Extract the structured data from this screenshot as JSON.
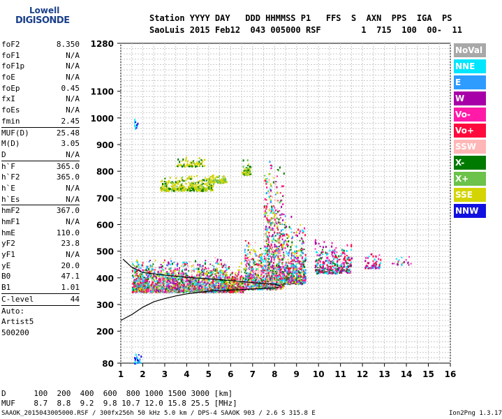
{
  "logo": {
    "line1": "Lowell",
    "line2": "DIGISONDE"
  },
  "header": {
    "line1": "Station YYYY DAY   DDD HHMMSS P1   FFS  S  AXN  PPS  IGA  PS",
    "line2": "SaoLuis 2015 Feb12  043 005000 RSF        1  715  100  00-  11"
  },
  "params": [
    [
      {
        "k": "foF2",
        "v": "8.350"
      },
      {
        "k": "foF1",
        "v": "N/A"
      },
      {
        "k": "foF1p",
        "v": "N/A"
      },
      {
        "k": "foE",
        "v": "N/A"
      },
      {
        "k": "foEp",
        "v": "0.45"
      },
      {
        "k": "fxI",
        "v": "N/A"
      },
      {
        "k": "foEs",
        "v": "N/A"
      },
      {
        "k": "fmin",
        "v": "2.45"
      }
    ],
    [
      {
        "k": "MUF(D)",
        "v": "25.48"
      },
      {
        "k": "M(D)",
        "v": "3.05"
      },
      {
        "k": "D",
        "v": "N/A"
      }
    ],
    [
      {
        "k": "h`F",
        "v": "365.0"
      },
      {
        "k": "h`F2",
        "v": "365.0"
      },
      {
        "k": "h`E",
        "v": "N/A"
      },
      {
        "k": "h`Es",
        "v": "N/A"
      }
    ],
    [
      {
        "k": "hmF2",
        "v": "367.0"
      },
      {
        "k": "hmF1",
        "v": "N/A"
      },
      {
        "k": "hmE",
        "v": "110.0"
      },
      {
        "k": "yF2",
        "v": "23.8"
      },
      {
        "k": "yF1",
        "v": "N/A"
      },
      {
        "k": "yE",
        "v": "20.0"
      },
      {
        "k": "B0",
        "v": "47.1"
      },
      {
        "k": "B1",
        "v": "1.01"
      }
    ],
    [
      {
        "k": "C-level",
        "v": "44"
      }
    ],
    [
      {
        "k": "Auto:",
        "v": ""
      },
      {
        "k": "Artist5",
        "v": ""
      },
      {
        "k": "500200",
        "v": ""
      }
    ]
  ],
  "footer": {
    "d_row": "D      100  200  400  600  800 1000 1500 3000 [km]",
    "muf_row": "MUF    8.7  8.8  9.2  9.8 10.7 12.0 15.8 25.5 [MHz]",
    "info": "SAAOK_2015043005000.RSF / 300fx256h 50 kHz 5.0 km / DPS-4 SAAOK 903 / 2.6 S 315.8 E",
    "version": "Ion2Png 1.3.17"
  },
  "legend": [
    {
      "label": "NoVal",
      "color": "#a8a8a8"
    },
    {
      "label": "NNE",
      "color": "#00e6ff"
    },
    {
      "label": "E",
      "color": "#2e9bff"
    },
    {
      "label": "W",
      "color": "#a800a8"
    },
    {
      "label": "Vo-",
      "color": "#ff1aa8"
    },
    {
      "label": "Vo+",
      "color": "#ff0a3c"
    },
    {
      "label": "SSW",
      "color": "#ffb6b6"
    },
    {
      "label": "X-",
      "color": "#007a00"
    },
    {
      "label": "X+",
      "color": "#6cc24a"
    },
    {
      "label": "SSE",
      "color": "#d4d400"
    },
    {
      "label": "NNW",
      "color": "#1010e0"
    }
  ],
  "chart_data": {
    "type": "scatter",
    "xlim": [
      1,
      16
    ],
    "ylim": [
      80,
      1280
    ],
    "x_ticks": [
      1,
      2,
      3,
      4,
      5,
      6,
      7,
      8,
      9,
      10,
      11,
      12,
      13,
      14,
      15,
      16
    ],
    "y_ticks": [
      80,
      200,
      300,
      400,
      500,
      600,
      700,
      800,
      900,
      1000,
      1100,
      1280
    ],
    "grid": true,
    "profile": {
      "x": [
        1.0,
        1.5,
        2.0,
        2.5,
        3.0,
        3.5,
        4.0,
        4.5,
        5.0,
        5.5,
        6.0,
        6.5,
        7.0,
        7.5,
        8.0,
        8.2
      ],
      "y": [
        240,
        262,
        290,
        310,
        322,
        332,
        340,
        345,
        350,
        352,
        354,
        356,
        358,
        360,
        362,
        365
      ]
    },
    "trace": {
      "x": [
        1.1,
        1.5,
        2.0,
        3.0,
        4.0,
        5.0,
        6.0,
        7.0,
        8.0,
        8.3
      ],
      "y": [
        470,
        440,
        420,
        410,
        402,
        396,
        390,
        382,
        376,
        370
      ]
    },
    "clusters": [
      {
        "x": [
          1.5,
          2.2
        ],
        "y": [
          350,
          480
        ],
        "n": 320,
        "c": [
          4,
          5,
          1,
          2,
          7,
          8,
          9
        ]
      },
      {
        "x": [
          2.2,
          5.8
        ],
        "y": [
          350,
          480
        ],
        "n": 1600,
        "c": [
          4,
          5,
          1,
          2,
          7,
          8,
          9,
          3,
          6
        ]
      },
      {
        "x": [
          5.8,
          6.6
        ],
        "y": [
          350,
          460
        ],
        "n": 260,
        "c": [
          4,
          5,
          7,
          8,
          9
        ]
      },
      {
        "x": [
          6.6,
          7.5
        ],
        "y": [
          360,
          560
        ],
        "n": 420,
        "c": [
          4,
          5,
          1,
          2,
          6,
          9,
          7
        ]
      },
      {
        "x": [
          7.5,
          8.4
        ],
        "y": [
          360,
          880
        ],
        "n": 760,
        "c": [
          4,
          5,
          1,
          2,
          7,
          8,
          9,
          3,
          6
        ]
      },
      {
        "x": [
          8.4,
          9.4
        ],
        "y": [
          380,
          640
        ],
        "n": 420,
        "c": [
          4,
          5,
          1,
          2,
          3,
          7,
          9
        ]
      },
      {
        "x": [
          9.8,
          11.5
        ],
        "y": [
          420,
          560
        ],
        "n": 340,
        "c": [
          4,
          5,
          3,
          1,
          7
        ]
      },
      {
        "x": [
          12.1,
          12.8
        ],
        "y": [
          440,
          500
        ],
        "n": 60,
        "c": [
          4,
          5,
          1,
          3
        ]
      },
      {
        "x": [
          13.3,
          14.2
        ],
        "y": [
          450,
          490
        ],
        "n": 20,
        "c": [
          3,
          4,
          8,
          1
        ]
      },
      {
        "x": [
          2.8,
          5.2
        ],
        "y": [
          730,
          790
        ],
        "n": 360,
        "c": [
          9,
          9,
          9,
          7,
          8
        ]
      },
      {
        "x": [
          3.5,
          4.8
        ],
        "y": [
          820,
          860
        ],
        "n": 80,
        "c": [
          9,
          9,
          7
        ]
      },
      {
        "x": [
          5.0,
          5.8
        ],
        "y": [
          760,
          790
        ],
        "n": 80,
        "c": [
          9,
          9,
          8
        ]
      },
      {
        "x": [
          6.5,
          6.9
        ],
        "y": [
          790,
          850
        ],
        "n": 70,
        "c": [
          9,
          8,
          7
        ]
      },
      {
        "x": [
          1.6,
          1.75
        ],
        "y": [
          960,
          1020
        ],
        "n": 14,
        "c": [
          10,
          1
        ]
      },
      {
        "x": [
          1.6,
          1.9
        ],
        "y": [
          80,
          130
        ],
        "n": 24,
        "c": [
          10,
          1,
          2
        ]
      }
    ]
  }
}
